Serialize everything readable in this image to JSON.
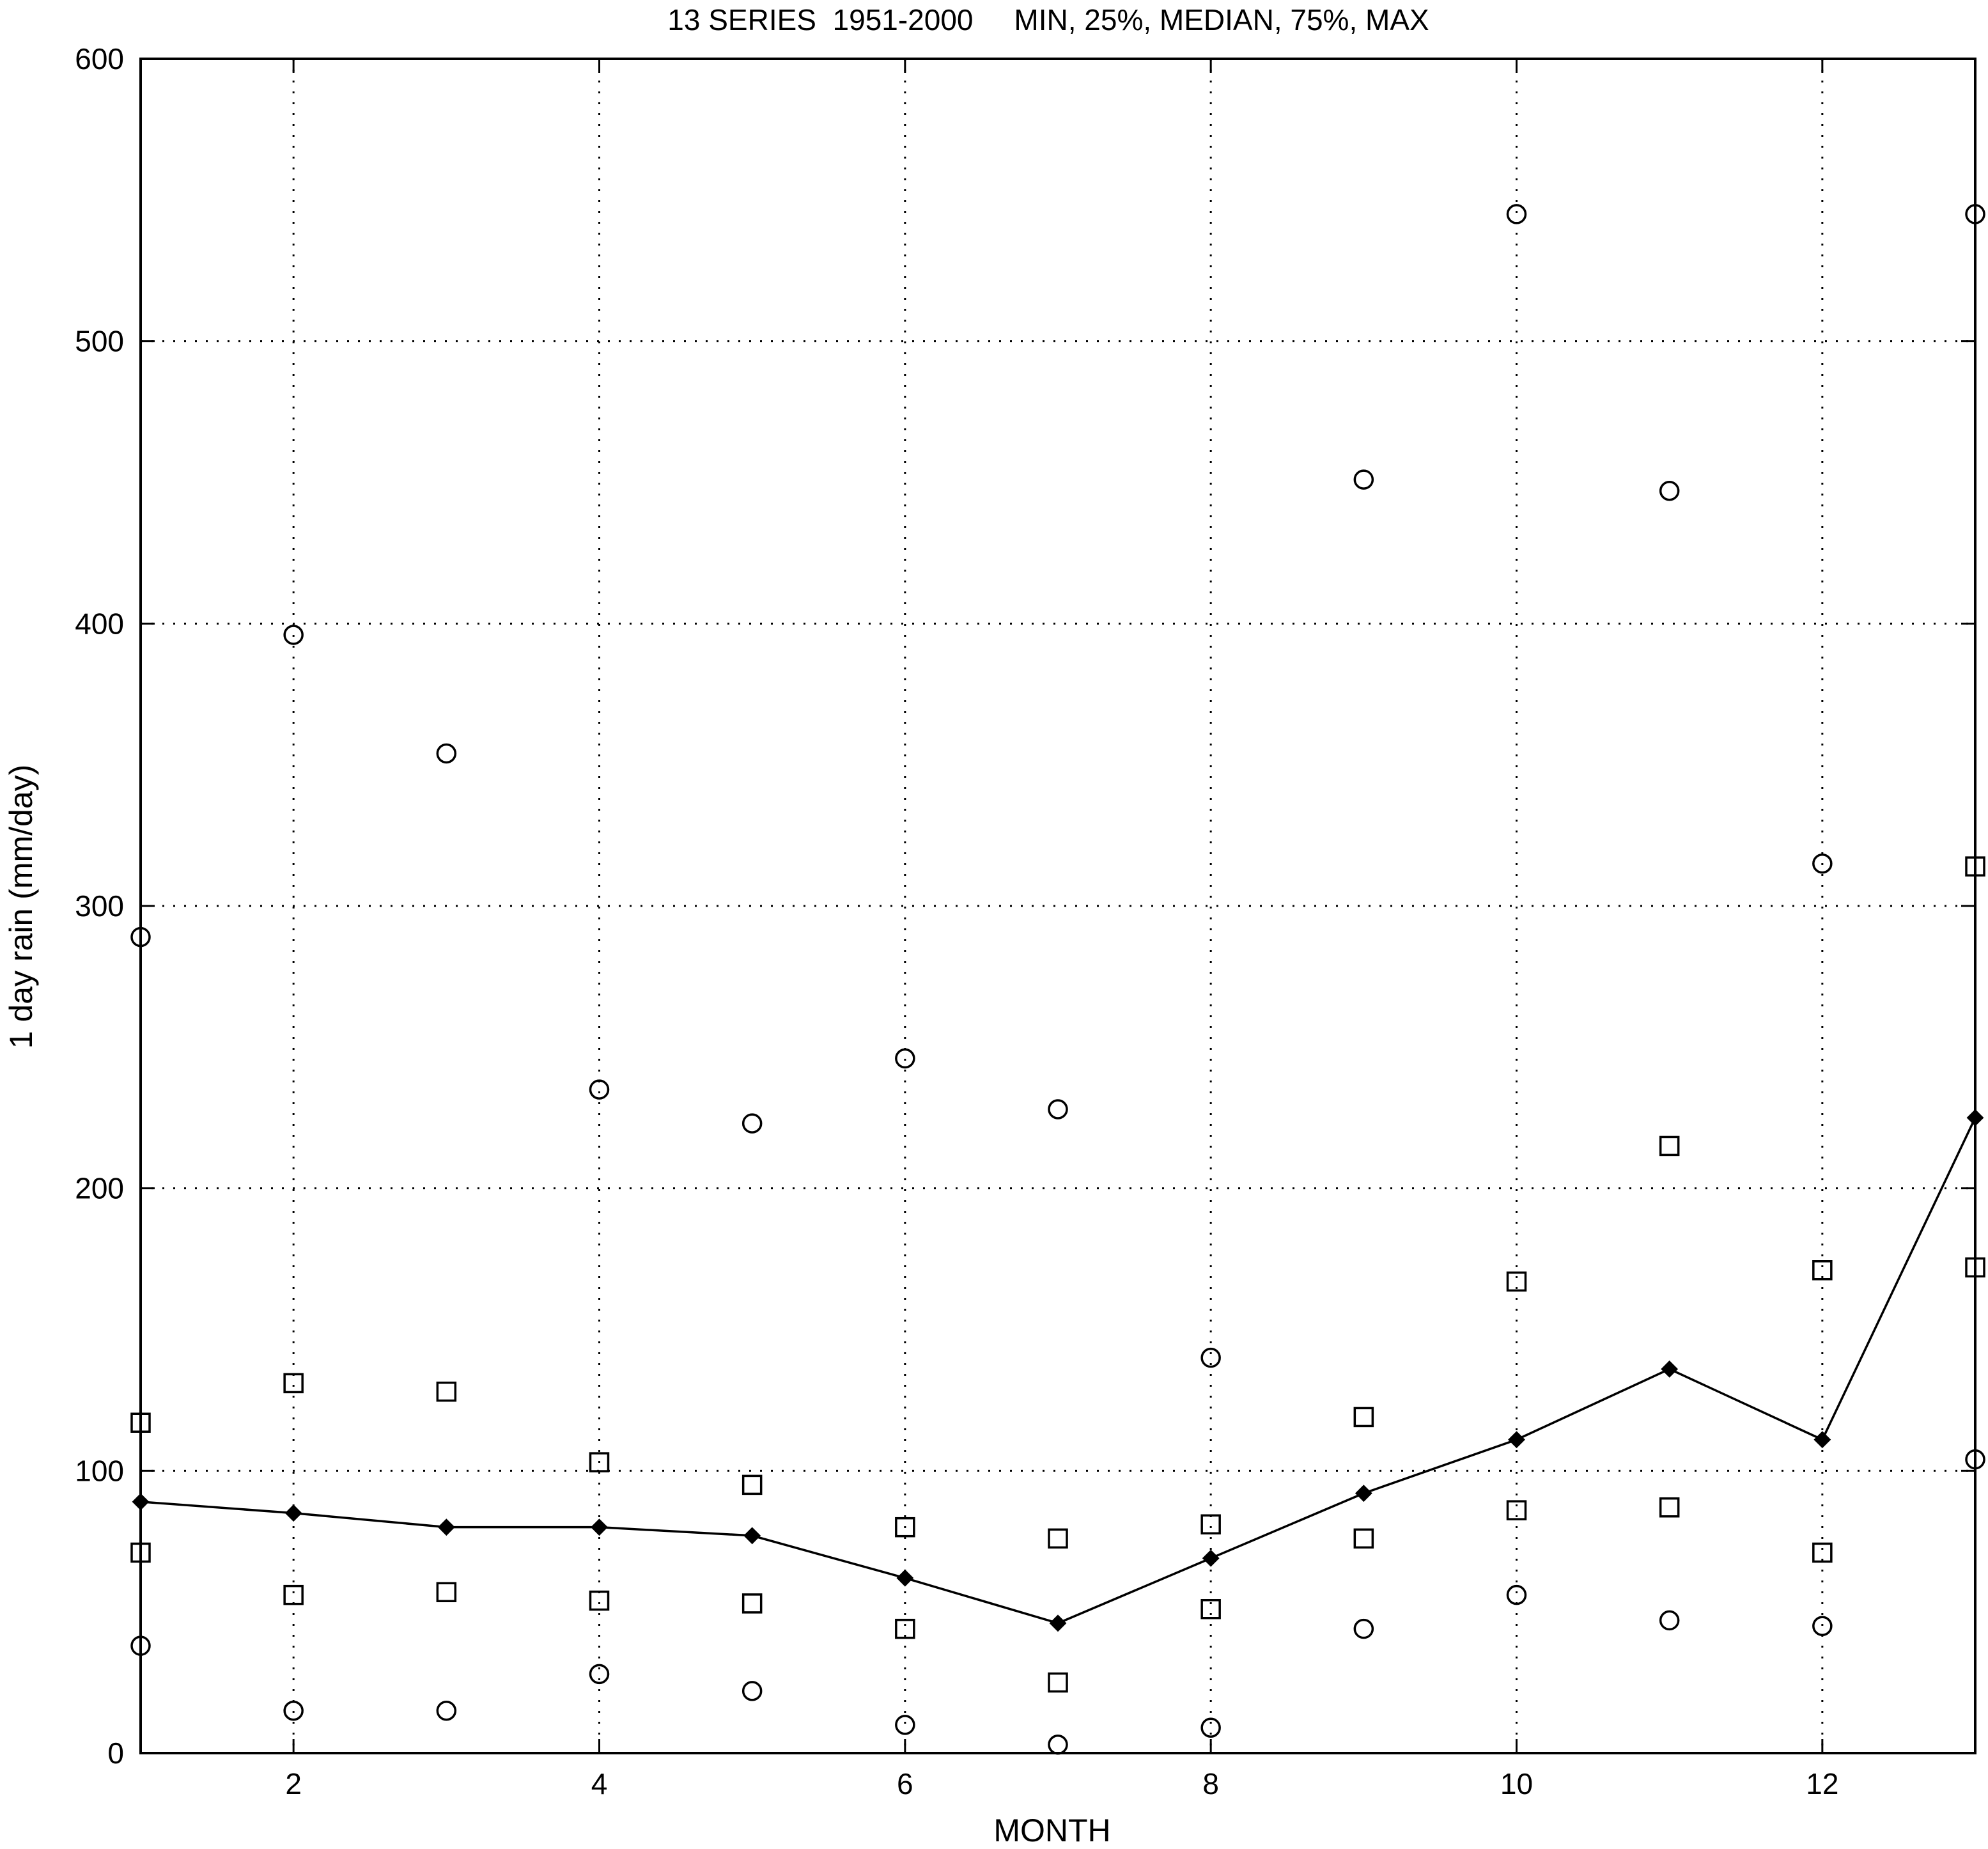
{
  "chart_data": {
    "type": "scatter",
    "title": "13 SERIES  1951-2000     MIN, 25%, MEDIAN, 75%, MAX",
    "xlabel": "MONTH",
    "ylabel": "1 day rain (mm/day)",
    "xlim": [
      1,
      13
    ],
    "ylim": [
      0,
      600
    ],
    "x_ticks": [
      2,
      4,
      6,
      8,
      10,
      12
    ],
    "y_ticks": [
      0,
      100,
      200,
      300,
      400,
      500,
      600
    ],
    "grid": true,
    "x": [
      1,
      2,
      3,
      4,
      5,
      6,
      7,
      8,
      9,
      10,
      11,
      12,
      13
    ],
    "series": [
      {
        "marker": "circle",
        "values": [
          38,
          15,
          15,
          28,
          22,
          10,
          3,
          9,
          44,
          56,
          47,
          45,
          104
        ]
      },
      {
        "marker": "square",
        "values": [
          71,
          56,
          57,
          54,
          53,
          44,
          25,
          51,
          76,
          86,
          87,
          71,
          172
        ]
      },
      {
        "marker": "line-dot",
        "values": [
          89,
          85,
          80,
          80,
          77,
          62,
          46,
          69,
          92,
          111,
          136,
          111,
          225
        ]
      },
      {
        "marker": "square",
        "values": [
          117,
          131,
          128,
          103,
          95,
          80,
          76,
          81,
          119,
          167,
          215,
          171,
          314
        ]
      },
      {
        "marker": "circle",
        "values": [
          289,
          396,
          354,
          235,
          223,
          246,
          228,
          140,
          451,
          545,
          447,
          315,
          545
        ]
      }
    ]
  }
}
